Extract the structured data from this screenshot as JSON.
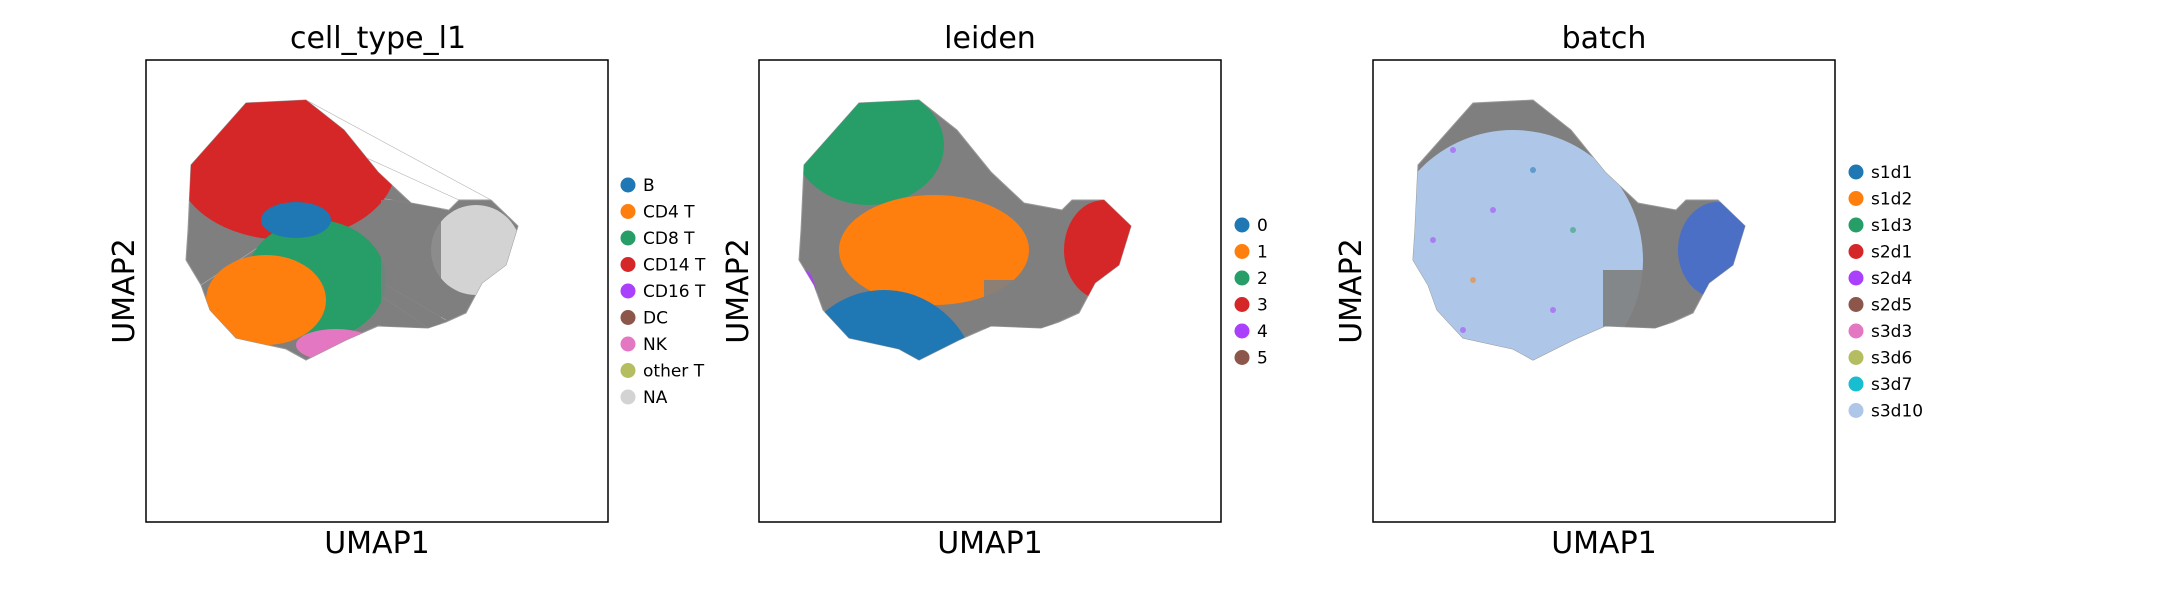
{
  "figure": {
    "panels": [
      {
        "title": "cell_type_l1",
        "xlabel": "UMAP1",
        "ylabel": "UMAP2",
        "legend": [
          {
            "label": "B",
            "color": "#1f77b4"
          },
          {
            "label": "CD4 T",
            "color": "#ff7f0e"
          },
          {
            "label": "CD8 T",
            "color": "#279e68"
          },
          {
            "label": "CD14 T",
            "color": "#d62728"
          },
          {
            "label": "CD16 T",
            "color": "#aa40fc"
          },
          {
            "label": "DC",
            "color": "#8c564b"
          },
          {
            "label": "NK",
            "color": "#e377c2"
          },
          {
            "label": "other T",
            "color": "#b5bd61"
          },
          {
            "label": "NA",
            "color": "#d3d3d3"
          }
        ]
      },
      {
        "title": "leiden",
        "xlabel": "UMAP1",
        "ylabel": "UMAP2",
        "legend": [
          {
            "label": "0",
            "color": "#1f77b4"
          },
          {
            "label": "1",
            "color": "#ff7f0e"
          },
          {
            "label": "2",
            "color": "#279e68"
          },
          {
            "label": "3",
            "color": "#d62728"
          },
          {
            "label": "4",
            "color": "#aa40fc"
          },
          {
            "label": "5",
            "color": "#8c564b"
          }
        ]
      },
      {
        "title": "batch",
        "xlabel": "UMAP1",
        "ylabel": "UMAP2",
        "legend": [
          {
            "label": "s1d1",
            "color": "#1f77b4"
          },
          {
            "label": "s1d2",
            "color": "#ff7f0e"
          },
          {
            "label": "s1d3",
            "color": "#279e68"
          },
          {
            "label": "s2d1",
            "color": "#d62728"
          },
          {
            "label": "s2d4",
            "color": "#aa40fc"
          },
          {
            "label": "s2d5",
            "color": "#8c564b"
          },
          {
            "label": "s3d3",
            "color": "#e377c2"
          },
          {
            "label": "s3d6",
            "color": "#b5bd61"
          },
          {
            "label": "s3d7",
            "color": "#17becf"
          },
          {
            "label": "s3d10",
            "color": "#aec7e8"
          }
        ]
      }
    ],
    "edge_color": "#808080"
  },
  "chart_data": [
    {
      "type": "scatter",
      "title": "cell_type_l1",
      "xlabel": "UMAP1",
      "ylabel": "UMAP2",
      "ticks": "none",
      "grid": false,
      "legend_position": "right",
      "colored_by": "cell_type_l1",
      "series": [
        {
          "name": "B",
          "color": "#1f77b4"
        },
        {
          "name": "CD4 T",
          "color": "#ff7f0e"
        },
        {
          "name": "CD8 T",
          "color": "#279e68"
        },
        {
          "name": "CD14 T",
          "color": "#d62728"
        },
        {
          "name": "CD16 T",
          "color": "#aa40fc"
        },
        {
          "name": "DC",
          "color": "#8c564b"
        },
        {
          "name": "NK",
          "color": "#e377c2"
        },
        {
          "name": "other T",
          "color": "#b5bd61"
        },
        {
          "name": "NA",
          "color": "#d3d3d3"
        }
      ]
    },
    {
      "type": "scatter",
      "title": "leiden",
      "xlabel": "UMAP1",
      "ylabel": "UMAP2",
      "ticks": "none",
      "grid": false,
      "legend_position": "right",
      "colored_by": "leiden",
      "series": [
        {
          "name": "0",
          "color": "#1f77b4"
        },
        {
          "name": "1",
          "color": "#ff7f0e"
        },
        {
          "name": "2",
          "color": "#279e68"
        },
        {
          "name": "3",
          "color": "#d62728"
        },
        {
          "name": "4",
          "color": "#aa40fc"
        },
        {
          "name": "5",
          "color": "#8c564b"
        }
      ]
    },
    {
      "type": "scatter",
      "title": "batch",
      "xlabel": "UMAP1",
      "ylabel": "UMAP2",
      "ticks": "none",
      "grid": false,
      "legend_position": "right",
      "colored_by": "batch",
      "series": [
        {
          "name": "s1d1",
          "color": "#1f77b4"
        },
        {
          "name": "s1d2",
          "color": "#ff7f0e"
        },
        {
          "name": "s1d3",
          "color": "#279e68"
        },
        {
          "name": "s2d1",
          "color": "#d62728"
        },
        {
          "name": "s2d4",
          "color": "#aa40fc"
        },
        {
          "name": "s2d5",
          "color": "#8c564b"
        },
        {
          "name": "s3d3",
          "color": "#e377c2"
        },
        {
          "name": "s3d6",
          "color": "#b5bd61"
        },
        {
          "name": "s3d7",
          "color": "#17becf"
        },
        {
          "name": "s3d10",
          "color": "#aec7e8"
        }
      ]
    }
  ]
}
